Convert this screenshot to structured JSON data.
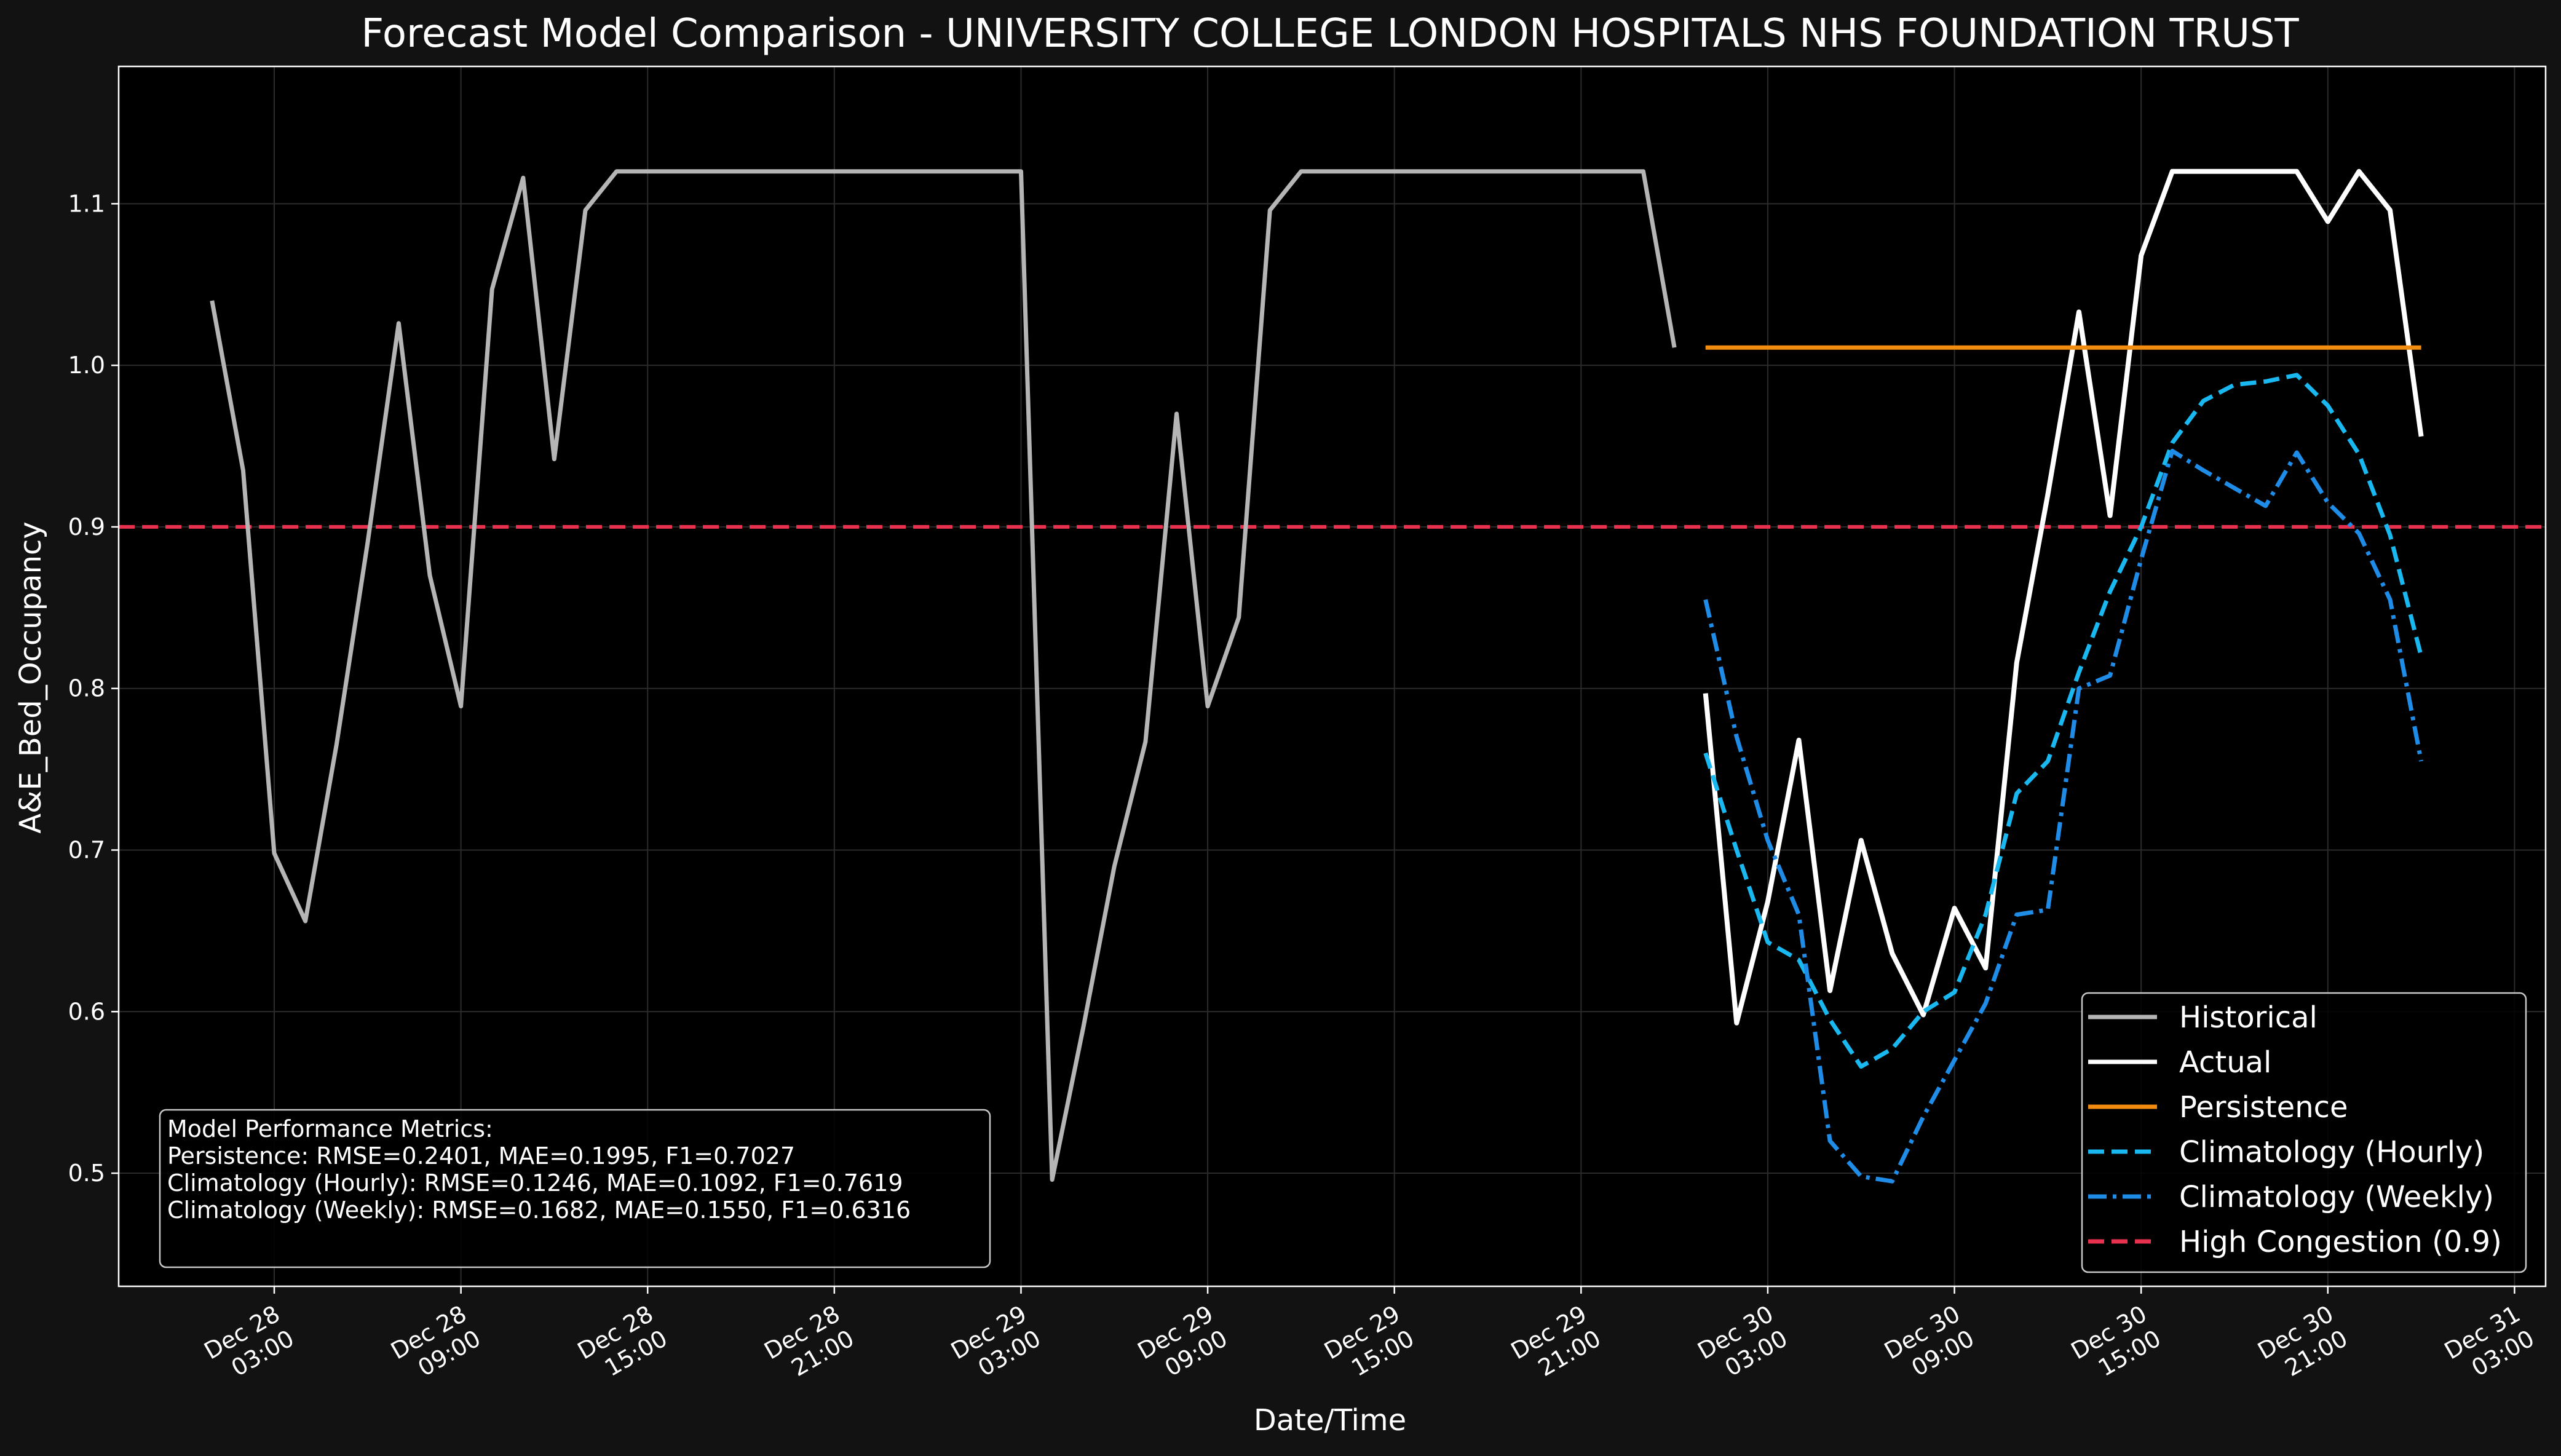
{
  "chart_data": {
    "type": "line",
    "title": "Forecast Model Comparison - UNIVERSITY COLLEGE LONDON HOSPITALS NHS FOUNDATION TRUST",
    "xlabel": "Date/Time",
    "ylabel": "A&E_Bed_Occupancy",
    "x_range": [
      "2024-12-27 22:00",
      "2024-12-31 04:00"
    ],
    "ylim": [
      0.43,
      1.185
    ],
    "yticks": [
      0.5,
      0.6,
      0.7,
      0.8,
      0.9,
      1.0,
      1.1
    ],
    "ytick_labels": [
      "0.5",
      "0.6",
      "0.7",
      "0.8",
      "0.9",
      "1.0",
      "1.1"
    ],
    "xticks": [
      {
        "t": "2024-12-28 03:00",
        "line1": "Dec 28",
        "line2": "03:00"
      },
      {
        "t": "2024-12-28 09:00",
        "line1": "Dec 28",
        "line2": "09:00"
      },
      {
        "t": "2024-12-28 15:00",
        "line1": "Dec 28",
        "line2": "15:00"
      },
      {
        "t": "2024-12-28 21:00",
        "line1": "Dec 28",
        "line2": "21:00"
      },
      {
        "t": "2024-12-29 03:00",
        "line1": "Dec 29",
        "line2": "03:00"
      },
      {
        "t": "2024-12-29 09:00",
        "line1": "Dec 29",
        "line2": "09:00"
      },
      {
        "t": "2024-12-29 15:00",
        "line1": "Dec 29",
        "line2": "15:00"
      },
      {
        "t": "2024-12-29 21:00",
        "line1": "Dec 29",
        "line2": "21:00"
      },
      {
        "t": "2024-12-30 03:00",
        "line1": "Dec 30",
        "line2": "03:00"
      },
      {
        "t": "2024-12-30 09:00",
        "line1": "Dec 30",
        "line2": "09:00"
      },
      {
        "t": "2024-12-30 15:00",
        "line1": "Dec 30",
        "line2": "15:00"
      },
      {
        "t": "2024-12-30 21:00",
        "line1": "Dec 30",
        "line2": "21:00"
      },
      {
        "t": "2024-12-31 03:00",
        "line1": "Dec 31",
        "line2": "03:00"
      }
    ],
    "grid": true,
    "legend_position": "bottom-right",
    "reference_line": {
      "name": "High Congestion (0.9)",
      "y": 0.9,
      "color": "#e8304f",
      "style": "dashed"
    },
    "series": [
      {
        "name": "Historical",
        "color": "#b5b5b5",
        "style": "solid",
        "points": [
          [
            "2024-12-28 01:00",
            1.04
          ],
          [
            "2024-12-28 02:00",
            0.935
          ],
          [
            "2024-12-28 03:00",
            0.698
          ],
          [
            "2024-12-28 04:00",
            0.656
          ],
          [
            "2024-12-28 05:00",
            0.765
          ],
          [
            "2024-12-28 06:00",
            0.89
          ],
          [
            "2024-12-28 07:00",
            1.026
          ],
          [
            "2024-12-28 08:00",
            0.87
          ],
          [
            "2024-12-28 09:00",
            0.789
          ],
          [
            "2024-12-28 10:00",
            1.047
          ],
          [
            "2024-12-28 11:00",
            1.116
          ],
          [
            "2024-12-28 12:00",
            0.942
          ],
          [
            "2024-12-28 13:00",
            1.096
          ],
          [
            "2024-12-28 14:00",
            1.12
          ],
          [
            "2024-12-28 15:00",
            1.12
          ],
          [
            "2024-12-28 16:00",
            1.12
          ],
          [
            "2024-12-28 17:00",
            1.12
          ],
          [
            "2024-12-28 18:00",
            1.12
          ],
          [
            "2024-12-28 19:00",
            1.12
          ],
          [
            "2024-12-28 20:00",
            1.12
          ],
          [
            "2024-12-28 21:00",
            1.12
          ],
          [
            "2024-12-28 22:00",
            1.12
          ],
          [
            "2024-12-28 23:00",
            1.12
          ],
          [
            "2024-12-29 00:00",
            1.12
          ],
          [
            "2024-12-29 01:00",
            1.12
          ],
          [
            "2024-12-29 02:00",
            1.12
          ],
          [
            "2024-12-29 03:00",
            1.12
          ],
          [
            "2024-12-29 04:00",
            0.496
          ],
          [
            "2024-12-29 05:00",
            0.59
          ],
          [
            "2024-12-29 06:00",
            0.69
          ],
          [
            "2024-12-29 07:00",
            0.767
          ],
          [
            "2024-12-29 08:00",
            0.97
          ],
          [
            "2024-12-29 09:00",
            0.789
          ],
          [
            "2024-12-29 10:00",
            0.844
          ],
          [
            "2024-12-29 11:00",
            1.096
          ],
          [
            "2024-12-29 12:00",
            1.12
          ],
          [
            "2024-12-29 13:00",
            1.12
          ],
          [
            "2024-12-29 14:00",
            1.12
          ],
          [
            "2024-12-29 15:00",
            1.12
          ],
          [
            "2024-12-29 16:00",
            1.12
          ],
          [
            "2024-12-29 17:00",
            1.12
          ],
          [
            "2024-12-29 18:00",
            1.12
          ],
          [
            "2024-12-29 19:00",
            1.12
          ],
          [
            "2024-12-29 20:00",
            1.12
          ],
          [
            "2024-12-29 21:00",
            1.12
          ],
          [
            "2024-12-29 22:00",
            1.12
          ],
          [
            "2024-12-29 23:00",
            1.12
          ],
          [
            "2024-12-30 00:00",
            1.011
          ]
        ]
      },
      {
        "name": "Actual",
        "color": "#ffffff",
        "style": "solid",
        "points": [
          [
            "2024-12-30 01:00",
            0.797
          ],
          [
            "2024-12-30 02:00",
            0.593
          ],
          [
            "2024-12-30 03:00",
            0.668
          ],
          [
            "2024-12-30 04:00",
            0.768
          ],
          [
            "2024-12-30 05:00",
            0.613
          ],
          [
            "2024-12-30 06:00",
            0.706
          ],
          [
            "2024-12-30 07:00",
            0.636
          ],
          [
            "2024-12-30 08:00",
            0.598
          ],
          [
            "2024-12-30 09:00",
            0.664
          ],
          [
            "2024-12-30 10:00",
            0.627
          ],
          [
            "2024-12-30 11:00",
            0.816
          ],
          [
            "2024-12-30 12:00",
            0.92
          ],
          [
            "2024-12-30 13:00",
            1.033
          ],
          [
            "2024-12-30 14:00",
            0.907
          ],
          [
            "2024-12-30 15:00",
            1.068
          ],
          [
            "2024-12-30 16:00",
            1.12
          ],
          [
            "2024-12-30 17:00",
            1.12
          ],
          [
            "2024-12-30 18:00",
            1.12
          ],
          [
            "2024-12-30 19:00",
            1.12
          ],
          [
            "2024-12-30 20:00",
            1.12
          ],
          [
            "2024-12-30 21:00",
            1.089
          ],
          [
            "2024-12-30 22:00",
            1.12
          ],
          [
            "2024-12-30 23:00",
            1.096
          ],
          [
            "2024-12-31 00:00",
            0.956
          ]
        ]
      },
      {
        "name": "Persistence",
        "color": "#f28c0f",
        "style": "solid",
        "points": [
          [
            "2024-12-30 01:00",
            1.011
          ],
          [
            "2024-12-31 00:00",
            1.011
          ]
        ]
      },
      {
        "name": "Climatology (Hourly)",
        "color": "#1ab8f0",
        "style": "dashed",
        "points": [
          [
            "2024-12-30 01:00",
            0.76
          ],
          [
            "2024-12-30 02:00",
            0.7
          ],
          [
            "2024-12-30 03:00",
            0.643
          ],
          [
            "2024-12-30 04:00",
            0.632
          ],
          [
            "2024-12-30 05:00",
            0.595
          ],
          [
            "2024-12-30 06:00",
            0.566
          ],
          [
            "2024-12-30 07:00",
            0.577
          ],
          [
            "2024-12-30 08:00",
            0.6
          ],
          [
            "2024-12-30 09:00",
            0.612
          ],
          [
            "2024-12-30 10:00",
            0.66
          ],
          [
            "2024-12-30 11:00",
            0.735
          ],
          [
            "2024-12-30 12:00",
            0.755
          ],
          [
            "2024-12-30 13:00",
            0.81
          ],
          [
            "2024-12-30 14:00",
            0.86
          ],
          [
            "2024-12-30 15:00",
            0.9
          ],
          [
            "2024-12-30 16:00",
            0.952
          ],
          [
            "2024-12-30 17:00",
            0.978
          ],
          [
            "2024-12-30 18:00",
            0.988
          ],
          [
            "2024-12-30 19:00",
            0.99
          ],
          [
            "2024-12-30 20:00",
            0.994
          ],
          [
            "2024-12-30 21:00",
            0.975
          ],
          [
            "2024-12-30 22:00",
            0.945
          ],
          [
            "2024-12-30 23:00",
            0.895
          ],
          [
            "2024-12-31 00:00",
            0.82
          ]
        ]
      },
      {
        "name": "Climatology (Weekly)",
        "color": "#1f8ce8",
        "style": "dashdot",
        "points": [
          [
            "2024-12-30 01:00",
            0.855
          ],
          [
            "2024-12-30 02:00",
            0.77
          ],
          [
            "2024-12-30 03:00",
            0.706
          ],
          [
            "2024-12-30 04:00",
            0.66
          ],
          [
            "2024-12-30 05:00",
            0.52
          ],
          [
            "2024-12-30 06:00",
            0.498
          ],
          [
            "2024-12-30 07:00",
            0.495
          ],
          [
            "2024-12-30 08:00",
            0.535
          ],
          [
            "2024-12-30 09:00",
            0.57
          ],
          [
            "2024-12-30 10:00",
            0.605
          ],
          [
            "2024-12-30 11:00",
            0.66
          ],
          [
            "2024-12-30 12:00",
            0.663
          ],
          [
            "2024-12-30 13:00",
            0.8
          ],
          [
            "2024-12-30 14:00",
            0.808
          ],
          [
            "2024-12-30 15:00",
            0.88
          ],
          [
            "2024-12-30 16:00",
            0.947
          ],
          [
            "2024-12-30 17:00",
            0.935
          ],
          [
            "2024-12-30 18:00",
            0.924
          ],
          [
            "2024-12-30 19:00",
            0.913
          ],
          [
            "2024-12-30 20:00",
            0.946
          ],
          [
            "2024-12-30 21:00",
            0.915
          ],
          [
            "2024-12-30 22:00",
            0.896
          ],
          [
            "2024-12-30 23:00",
            0.855
          ],
          [
            "2024-12-31 00:00",
            0.755
          ]
        ]
      }
    ],
    "legend": [
      "Historical",
      "Actual",
      "Persistence",
      "Climatology (Hourly)",
      "Climatology (Weekly)",
      "High Congestion (0.9)"
    ],
    "metrics_box": {
      "title": "Model Performance Metrics:",
      "lines": [
        "Persistence: RMSE=0.2401, MAE=0.1995, F1=0.7027",
        "Climatology (Hourly): RMSE=0.1246, MAE=0.1092, F1=0.7619",
        "Climatology (Weekly): RMSE=0.1682, MAE=0.1550, F1=0.6316"
      ]
    }
  }
}
